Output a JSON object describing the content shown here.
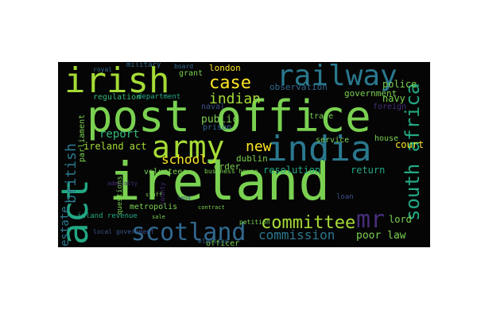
{
  "wordcloud": {
    "palette": {
      "green": "#7ad151",
      "lime": "#a5db36",
      "teal": "#22a884",
      "blue": "#2a788e",
      "steel": "#3b528b",
      "purple": "#472d7b",
      "indigo": "#31688e",
      "yellow": "#fde725",
      "cyan": "#1f9e89",
      "aqua": "#35b779",
      "dark": "#443983"
    },
    "words": {
      "ireland": "ireland",
      "post_office": "post office",
      "india": "india",
      "irish": "irish",
      "act": "act",
      "railway": "railway",
      "army": "army",
      "scotland": "scotland",
      "south_africa": "south africa",
      "committee": "committee",
      "mr": "mr",
      "case": "case",
      "indian": "indian",
      "commission": "commission",
      "school": "school",
      "british": "british",
      "estate": "estate",
      "new": "new",
      "report": "report",
      "public": "public",
      "poor_law": "poor law",
      "police": "police",
      "navy": "navy",
      "government": "government",
      "court": "court",
      "lord": "lord",
      "ireland_act": "ireland act",
      "resolution": "resolution",
      "return": "return",
      "london": "london",
      "grant": "grant",
      "observation": "observation",
      "regulation": "regulation",
      "department": "department",
      "dublin": "dublin",
      "order": "order",
      "prison": "prison",
      "naval": "naval",
      "volunteer": "volunteer",
      "parliament": "parliament",
      "trade": "trade",
      "house": "house",
      "service": "service",
      "foreign": "foreign",
      "loan": "loan",
      "officer": "officer",
      "metropolis": "metropolis",
      "inland_revenue": "inland revenue",
      "election": "election",
      "local_government": "local government",
      "military": "military",
      "royal": "royal",
      "board": "board",
      "business_house": "business house",
      "petition": "petition",
      "questions": "questions",
      "county": "county",
      "admiralty": "admiralty",
      "staff": "staff",
      "land": "land",
      "contract": "contract",
      "sale": "sale"
    }
  }
}
